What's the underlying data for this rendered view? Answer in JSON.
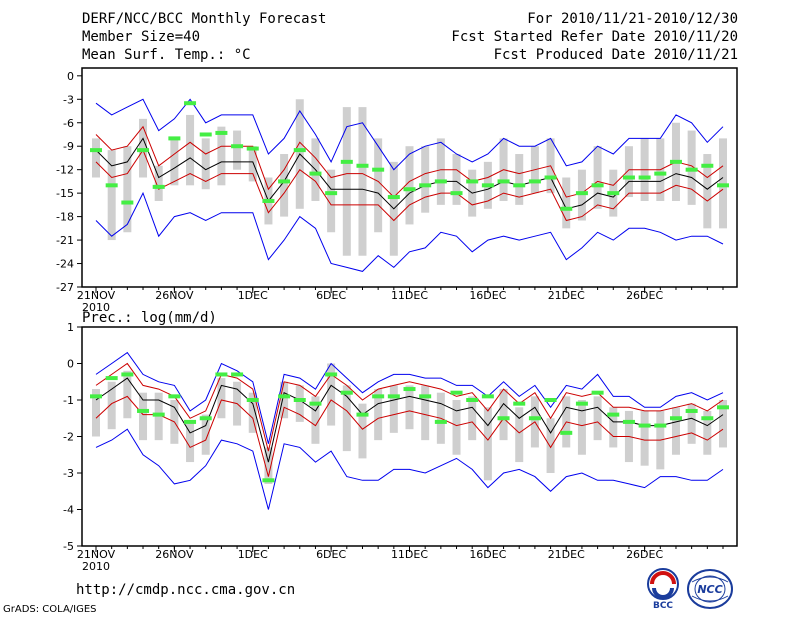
{
  "header": {
    "title": "DERF/NCC/BCC Monthly Forecast",
    "member_size": "Member Size=40",
    "variable_top": "Mean Surf. Temp.: °C",
    "period": "For 2010/11/21-2010/12/30",
    "started": "Fcst Started Refer Date 2010/11/20",
    "produced": "Fcst Produced Date 2010/11/21"
  },
  "footer": {
    "url": "http://cmdp.ncc.cma.gov.cn",
    "grads": "GrADS: COLA/IGES",
    "logo_text": "BCC",
    "logo2_text": "NCC"
  },
  "colors": {
    "mean": "#000000",
    "inner": "#cc0000",
    "outer": "#0000ee",
    "box": "#cfcfcf",
    "obs": "#44ee44"
  },
  "chart_data": [
    {
      "type": "line",
      "title": "Mean Surf. Temp.: °C",
      "xlabel": "",
      "ylabel": "",
      "ylim": [
        -27,
        1
      ],
      "yticks": [
        0,
        -3,
        -6,
        -9,
        -12,
        -15,
        -18,
        -21,
        -24,
        -27
      ],
      "x_tick_labels": [
        "21NOV",
        "26NOV",
        "1DEC",
        "6DEC",
        "11DEC",
        "16DEC",
        "21DEC",
        "26DEC"
      ],
      "x_tick_index": [
        0,
        5,
        10,
        15,
        20,
        25,
        30,
        35
      ],
      "year_label": "2010",
      "series": [
        {
          "name": "ensemble-mean",
          "values": [
            -9.5,
            -11.5,
            -11,
            -8,
            -13,
            -11.8,
            -10.5,
            -12,
            -11,
            -11,
            -11,
            -16,
            -13.5,
            -10,
            -12,
            -14.5,
            -14.5,
            -14.5,
            -15,
            -17,
            -15,
            -14,
            -13.5,
            -13.5,
            -15,
            -14.5,
            -13.5,
            -14,
            -13.5,
            -13,
            -17,
            -16.5,
            -15,
            -15.5,
            -13.5,
            -13.5,
            -13.5,
            -12.5,
            -13,
            -14.5,
            -13
          ]
        },
        {
          "name": "upper-inner",
          "values": [
            -7.5,
            -9.5,
            -9,
            -6.5,
            -11.5,
            -10,
            -8.5,
            -10,
            -9,
            -9,
            -9,
            -14.5,
            -12,
            -8.5,
            -10.5,
            -13,
            -12.5,
            -12.5,
            -13.5,
            -15.5,
            -13.5,
            -12.5,
            -12,
            -12,
            -13.5,
            -13,
            -12,
            -12.5,
            -12,
            -11.5,
            -15.5,
            -15,
            -13.5,
            -14,
            -12,
            -12,
            -12,
            -11,
            -11.5,
            -13,
            -11.5
          ]
        },
        {
          "name": "lower-inner",
          "values": [
            -11,
            -13,
            -12.5,
            -9.5,
            -14.5,
            -13.5,
            -12.5,
            -13.5,
            -12.5,
            -12.5,
            -12.5,
            -17.5,
            -15,
            -12,
            -13.5,
            -16.5,
            -16.5,
            -16.5,
            -16.5,
            -18.5,
            -16.5,
            -15.5,
            -15,
            -15,
            -16.5,
            -16,
            -15,
            -15.5,
            -15,
            -14.5,
            -18.5,
            -18,
            -16.5,
            -17,
            -15,
            -15,
            -15,
            -14,
            -14.5,
            -16,
            -14.5
          ]
        },
        {
          "name": "upper-outer",
          "values": [
            -3.5,
            -5,
            -4,
            -3,
            -7,
            -5.5,
            -3,
            -6,
            -5,
            -5,
            -5,
            -10,
            -8,
            -4.5,
            -7.5,
            -11,
            -6.5,
            -6,
            -9,
            -12,
            -10,
            -9,
            -8.5,
            -10,
            -11,
            -10,
            -8,
            -9,
            -9,
            -8,
            -11.5,
            -11,
            -9,
            -10,
            -8,
            -8,
            -8,
            -5,
            -6,
            -8.5,
            -6.5
          ]
        },
        {
          "name": "lower-outer",
          "values": [
            -18.5,
            -20.5,
            -19,
            -15,
            -20.5,
            -18,
            -17.5,
            -18.5,
            -17.5,
            -17.5,
            -17.5,
            -23.5,
            -21,
            -18,
            -19.5,
            -24,
            -24.5,
            -25,
            -23,
            -24.5,
            -22.5,
            -22,
            -20,
            -20.5,
            -22.5,
            -21,
            -20.5,
            -21,
            -20.5,
            -20,
            -23.5,
            -22,
            -20,
            -21,
            -19.5,
            -19.5,
            -20,
            -21,
            -20.5,
            -20.5,
            -21.5
          ]
        },
        {
          "name": "box-top",
          "values": [
            -8,
            -9.5,
            -9,
            -5.5,
            -11.5,
            -8,
            -5,
            -8,
            -6.5,
            -7,
            -9,
            -13,
            -10,
            -3,
            -8,
            -12,
            -4,
            -4,
            -8,
            -11,
            -9,
            -9,
            -8,
            -10,
            -12,
            -11,
            -8,
            -10,
            -9,
            -8,
            -13,
            -12,
            -9,
            -12,
            -9,
            -8,
            -8,
            -6,
            -7,
            -10,
            -8
          ]
        },
        {
          "name": "box-bottom",
          "values": [
            -13,
            -21,
            -20,
            -13,
            -16,
            -14,
            -14,
            -14.5,
            -14,
            -12,
            -13.5,
            -19,
            -18,
            -17,
            -16,
            -20,
            -23,
            -23,
            -20,
            -23,
            -19,
            -17.5,
            -16.5,
            -16.5,
            -18,
            -17,
            -16,
            -16.5,
            -15,
            -15,
            -19.5,
            -18.5,
            -17,
            -18,
            -15.5,
            -16,
            -16,
            -16,
            -16.5,
            -19.5,
            -19.5
          ]
        },
        {
          "name": "observed",
          "values": [
            -9.5,
            -14,
            -16.2,
            -9.5,
            -14.2,
            -8,
            -3.5,
            -7.5,
            -7.3,
            -9,
            -9.3,
            -16,
            -13.5,
            -9.5,
            -12.5,
            -15,
            -11,
            -11.5,
            -12,
            -15.5,
            -14.5,
            -14,
            -13.5,
            -15,
            -13.5,
            -14,
            -13.5,
            -14,
            -13.5,
            -13,
            -17,
            -15,
            -14,
            -15,
            -13,
            -13,
            -12.5,
            -11,
            -12,
            -11.5,
            -14
          ]
        }
      ]
    },
    {
      "type": "line",
      "title": "Prec.: log(mm/d)",
      "xlabel": "",
      "ylabel": "",
      "ylim": [
        -5,
        1
      ],
      "yticks": [
        1,
        0,
        -1,
        -2,
        -3,
        -4,
        -5
      ],
      "x_tick_labels": [
        "21NOV",
        "26NOV",
        "1DEC",
        "6DEC",
        "11DEC",
        "16DEC",
        "21DEC",
        "26DEC"
      ],
      "x_tick_index": [
        0,
        5,
        10,
        15,
        20,
        25,
        30,
        35
      ],
      "year_label": "2010",
      "series": [
        {
          "name": "ensemble-mean",
          "values": [
            -1,
            -0.7,
            -0.4,
            -1,
            -1,
            -1.2,
            -1.9,
            -1.7,
            -0.6,
            -0.7,
            -1.1,
            -2.7,
            -0.8,
            -1,
            -1.3,
            -0.6,
            -0.9,
            -1.4,
            -1.1,
            -1,
            -0.9,
            -1,
            -1.1,
            -1.3,
            -1.2,
            -1.7,
            -1.1,
            -1.5,
            -1.2,
            -1.9,
            -1.2,
            -1.3,
            -1.2,
            -1.6,
            -1.6,
            -1.7,
            -1.7,
            -1.6,
            -1.5,
            -1.7,
            -1.4
          ]
        },
        {
          "name": "upper-inner",
          "values": [
            -0.6,
            -0.3,
            0,
            -0.6,
            -0.7,
            -0.9,
            -1.5,
            -1.3,
            -0.3,
            -0.4,
            -0.7,
            -2.4,
            -0.5,
            -0.6,
            -0.9,
            -0.3,
            -0.6,
            -1,
            -0.7,
            -0.6,
            -0.5,
            -0.6,
            -0.7,
            -0.9,
            -0.8,
            -1.3,
            -0.7,
            -1.1,
            -0.8,
            -1.5,
            -0.8,
            -0.9,
            -0.8,
            -1.2,
            -1.2,
            -1.3,
            -1.3,
            -1.2,
            -1.1,
            -1.3,
            -1
          ]
        },
        {
          "name": "lower-inner",
          "values": [
            -1.5,
            -1.1,
            -0.9,
            -1.4,
            -1.4,
            -1.6,
            -2.3,
            -2.1,
            -1,
            -1.1,
            -1.5,
            -3.1,
            -1.2,
            -1.4,
            -1.7,
            -1,
            -1.3,
            -1.8,
            -1.5,
            -1.4,
            -1.3,
            -1.4,
            -1.5,
            -1.7,
            -1.6,
            -2.1,
            -1.5,
            -1.9,
            -1.6,
            -2.3,
            -1.6,
            -1.7,
            -1.6,
            -2,
            -2,
            -2.1,
            -2.1,
            -2,
            -1.9,
            -2.1,
            -1.8
          ]
        },
        {
          "name": "upper-outer",
          "values": [
            -0.3,
            0,
            0.3,
            -0.3,
            -0.5,
            -0.6,
            -1.3,
            -1,
            0,
            -0.2,
            -0.5,
            -2.2,
            -0.3,
            -0.4,
            -0.7,
            0,
            -0.4,
            -0.8,
            -0.5,
            -0.3,
            -0.3,
            -0.4,
            -0.4,
            -0.6,
            -0.6,
            -0.9,
            -0.5,
            -0.9,
            -0.6,
            -1.2,
            -0.6,
            -0.7,
            -0.3,
            -0.9,
            -0.9,
            -1.2,
            -1.2,
            -0.9,
            -0.8,
            -1,
            -0.8
          ]
        },
        {
          "name": "lower-outer",
          "values": [
            -2.3,
            -2.1,
            -1.8,
            -2.5,
            -2.8,
            -3.3,
            -3.2,
            -2.8,
            -2.1,
            -2.2,
            -2.4,
            -4,
            -2.2,
            -2.3,
            -2.7,
            -2.4,
            -3.1,
            -3.2,
            -3.2,
            -2.9,
            -2.9,
            -3,
            -2.8,
            -2.6,
            -2.9,
            -3.4,
            -3,
            -2.9,
            -3.1,
            -3.5,
            -3.1,
            -3,
            -3.2,
            -3.2,
            -3.3,
            -3.4,
            -3.1,
            -3.1,
            -3.2,
            -3.2,
            -2.9
          ]
        },
        {
          "name": "box-top",
          "values": [
            -0.7,
            -0.5,
            -0.2,
            -0.8,
            -0.8,
            -1,
            -1.6,
            -1.4,
            -0.4,
            -0.5,
            -0.8,
            -2.3,
            -0.5,
            -0.6,
            -0.9,
            0,
            -0.6,
            -1.1,
            -0.7,
            -0.6,
            -0.6,
            -0.6,
            -0.8,
            -1,
            -0.9,
            -1.2,
            -0.7,
            -1.2,
            -0.9,
            -1.5,
            -0.9,
            -1,
            -0.9,
            -1.2,
            -1.3,
            -1.3,
            -1.3,
            -1.2,
            -1.1,
            -1.3,
            -1
          ]
        },
        {
          "name": "box-bottom",
          "values": [
            -2,
            -1.8,
            -1.5,
            -2.1,
            -2.1,
            -2.2,
            -2.7,
            -2.5,
            -1.5,
            -1.7,
            -1.9,
            -3.3,
            -1.5,
            -1.6,
            -2.2,
            -1.7,
            -2.4,
            -2.6,
            -2.1,
            -1.9,
            -1.8,
            -2.1,
            -2.2,
            -2.5,
            -2.1,
            -3.2,
            -2.1,
            -2.7,
            -2.3,
            -3,
            -2.3,
            -2.5,
            -2.1,
            -2.3,
            -2.7,
            -2.8,
            -2.9,
            -2.5,
            -2.2,
            -2.5,
            -2.3
          ]
        },
        {
          "name": "observed",
          "values": [
            -0.9,
            -0.4,
            -0.3,
            -1.3,
            -1.4,
            -0.9,
            -1.6,
            -1.5,
            -0.3,
            -0.3,
            -1,
            -3.2,
            -0.9,
            -1,
            -1.1,
            -0.3,
            -0.8,
            -1.4,
            -0.9,
            -0.9,
            -0.7,
            -0.9,
            -1.6,
            -0.8,
            -1,
            -0.9,
            -1.5,
            -1.1,
            -1.5,
            -1,
            -1.9,
            -1.1,
            -0.8,
            -1.4,
            -1.6,
            -1.7,
            -1.7,
            -1.5,
            -1.3,
            -1.5,
            -1.2
          ]
        }
      ]
    }
  ]
}
